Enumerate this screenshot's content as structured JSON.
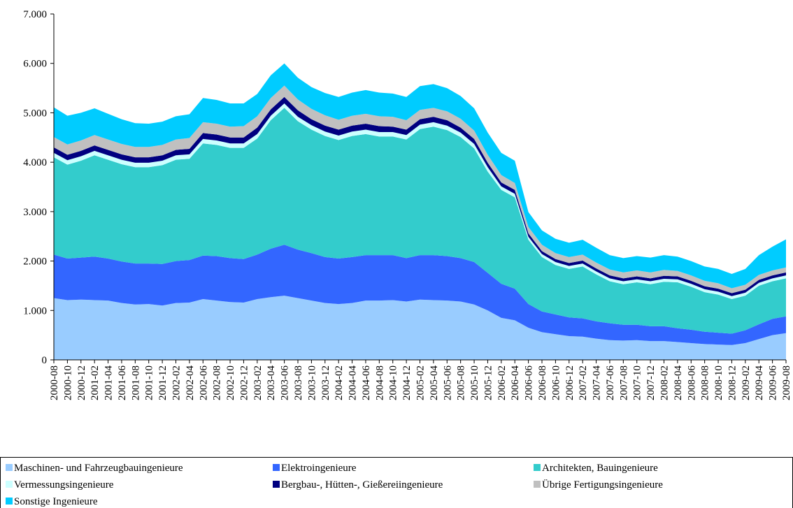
{
  "chart_data": {
    "type": "stacked_area",
    "categories": [
      "2000-08",
      "2000-10",
      "2000-12",
      "2001-02",
      "2001-04",
      "2001-06",
      "2001-08",
      "2001-10",
      "2001-12",
      "2002-02",
      "2002-04",
      "2002-06",
      "2002-08",
      "2002-10",
      "2002-12",
      "2003-02",
      "2003-04",
      "2003-06",
      "2003-08",
      "2003-10",
      "2003-12",
      "2004-02",
      "2004-04",
      "2004-06",
      "2004-08",
      "2004-10",
      "2004-12",
      "2005-02",
      "2005-04",
      "2005-06",
      "2005-08",
      "2005-10",
      "2005-12",
      "2006-02",
      "2006-04",
      "2006-06",
      "2006-08",
      "2006-10",
      "2006-12",
      "2007-02",
      "2007-04",
      "2007-06",
      "2007-08",
      "2007-10",
      "2007-12",
      "2008-02",
      "2008-04",
      "2008-06",
      "2008-08",
      "2008-10",
      "2008-12",
      "2009-02",
      "2009-04",
      "2009-06",
      "2009-08"
    ],
    "ylim": [
      0,
      7000
    ],
    "yticks": [
      0,
      {
        "value": 1000,
        "label": "1.000"
      },
      {
        "value": 2000,
        "label": "2.000"
      },
      {
        "value": 3000,
        "label": "3.000"
      },
      {
        "value": 4000,
        "label": "4.000"
      },
      {
        "value": 5000,
        "label": "5.000"
      },
      {
        "value": 6000,
        "label": "6.000"
      },
      {
        "value": 7000,
        "label": "7.000"
      }
    ],
    "series": [
      {
        "name": "Maschinen- und Fahrzeugbauingenieure",
        "color": "#99ccff",
        "values": [
          1250,
          1210,
          1220,
          1210,
          1200,
          1150,
          1120,
          1130,
          1100,
          1150,
          1160,
          1230,
          1200,
          1170,
          1160,
          1230,
          1270,
          1300,
          1250,
          1200,
          1150,
          1130,
          1150,
          1200,
          1200,
          1210,
          1180,
          1220,
          1210,
          1200,
          1180,
          1120,
          1000,
          850,
          800,
          650,
          560,
          520,
          480,
          470,
          430,
          400,
          390,
          400,
          380,
          380,
          360,
          340,
          320,
          310,
          300,
          340,
          420,
          500,
          540
        ]
      },
      {
        "name": "Elektroingenieure",
        "color": "#3366ff",
        "values": [
          880,
          840,
          850,
          880,
          850,
          840,
          830,
          820,
          840,
          850,
          860,
          880,
          900,
          890,
          880,
          900,
          980,
          1030,
          980,
          960,
          930,
          920,
          930,
          920,
          920,
          910,
          880,
          900,
          910,
          900,
          880,
          860,
          760,
          690,
          640,
          480,
          420,
          400,
          380,
          370,
          350,
          340,
          320,
          310,
          300,
          300,
          280,
          270,
          250,
          240,
          230,
          260,
          300,
          330,
          340
        ]
      },
      {
        "name": "Architekten, Bauingenieure",
        "color": "#33cccc",
        "values": [
          1970,
          1900,
          1960,
          2050,
          2000,
          1970,
          1950,
          1950,
          2000,
          2050,
          2050,
          2270,
          2250,
          2230,
          2250,
          2350,
          2600,
          2770,
          2600,
          2500,
          2450,
          2400,
          2450,
          2450,
          2400,
          2400,
          2400,
          2550,
          2600,
          2550,
          2450,
          2300,
          2050,
          1900,
          1850,
          1300,
          1100,
          1000,
          980,
          1050,
          950,
          850,
          820,
          860,
          850,
          900,
          930,
          870,
          800,
          770,
          700,
          700,
          780,
          760,
          770
        ]
      },
      {
        "name": "Vermessungsingenieure",
        "color": "#ccffff",
        "values": [
          90,
          90,
          90,
          90,
          90,
          90,
          90,
          90,
          90,
          90,
          90,
          90,
          90,
          90,
          90,
          90,
          90,
          90,
          90,
          90,
          90,
          90,
          90,
          90,
          90,
          90,
          90,
          90,
          90,
          90,
          90,
          90,
          90,
          70,
          70,
          60,
          60,
          60,
          60,
          60,
          60,
          60,
          60,
          60,
          60,
          60,
          60,
          60,
          60,
          60,
          60,
          60,
          60,
          60,
          60
        ]
      },
      {
        "name": "Bergbau-, Hütten-, Gießereiingenieure",
        "color": "#000080",
        "values": [
          110,
          110,
          110,
          110,
          110,
          110,
          110,
          110,
          110,
          110,
          110,
          120,
          120,
          120,
          120,
          130,
          130,
          130,
          130,
          120,
          120,
          120,
          120,
          120,
          120,
          110,
          110,
          110,
          110,
          110,
          100,
          100,
          90,
          80,
          80,
          70,
          60,
          60,
          60,
          60,
          60,
          60,
          60,
          60,
          60,
          60,
          60,
          60,
          60,
          60,
          60,
          60,
          60,
          60,
          60
        ]
      },
      {
        "name": "Übrige Fertigungsingenieure",
        "color": "#c0c0c0",
        "values": [
          210,
          210,
          210,
          210,
          210,
          210,
          210,
          210,
          210,
          210,
          220,
          220,
          220,
          220,
          230,
          230,
          230,
          230,
          220,
          210,
          210,
          200,
          200,
          200,
          200,
          200,
          190,
          190,
          180,
          180,
          180,
          170,
          160,
          150,
          140,
          130,
          130,
          120,
          120,
          120,
          120,
          120,
          120,
          120,
          120,
          120,
          110,
          110,
          110,
          110,
          100,
          100,
          100,
          100,
          100
        ]
      },
      {
        "name": "Sonstige Ingenieure",
        "color": "#00ccff",
        "values": [
          600,
          580,
          560,
          540,
          520,
          500,
          480,
          470,
          470,
          470,
          480,
          490,
          480,
          470,
          460,
          450,
          460,
          450,
          440,
          440,
          450,
          460,
          470,
          480,
          480,
          470,
          470,
          480,
          480,
          470,
          460,
          450,
          450,
          450,
          450,
          300,
          290,
          290,
          290,
          300,
          300,
          290,
          290,
          290,
          300,
          300,
          290,
          290,
          290,
          290,
          290,
          320,
          400,
          480,
          570
        ]
      }
    ]
  }
}
